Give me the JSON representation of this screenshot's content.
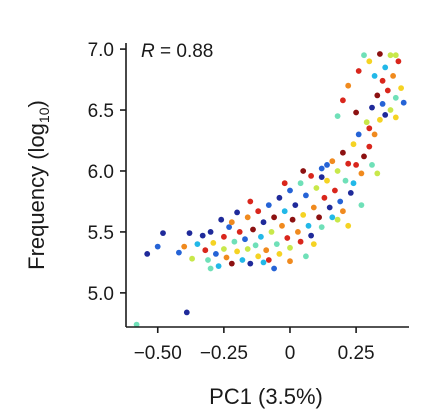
{
  "chart_data": {
    "type": "scatter",
    "title": "",
    "xlabel": "PC1 (3.5%)",
    "ylabel_main": "Frequency (log",
    "ylabel_sub": "10",
    "ylabel_end": ")",
    "annotation_symbol": "R",
    "annotation_value": " = 0.88",
    "annotation_position": "top-left",
    "xlim": [
      -0.62,
      0.45
    ],
    "ylim": [
      4.72,
      7.05
    ],
    "grid": false,
    "x_ticks": [
      {
        "value": -0.5,
        "label": "−0.50"
      },
      {
        "value": -0.25,
        "label": "−0.25"
      },
      {
        "value": 0,
        "label": "0"
      },
      {
        "value": 0.25,
        "label": "0.25"
      }
    ],
    "y_ticks": [
      {
        "value": 5.0,
        "label": "5.0"
      },
      {
        "value": 5.5,
        "label": "5.5"
      },
      {
        "value": 6.0,
        "label": "6.0"
      },
      {
        "value": 6.5,
        "label": "6.5"
      },
      {
        "value": 7.0,
        "label": "7.0"
      }
    ],
    "point_colormap": [
      "#1f2a9a",
      "#2563d6",
      "#22b8e8",
      "#6fe0b8",
      "#c8e84a",
      "#f5d323",
      "#f08a1e",
      "#d9261c",
      "#8c1111"
    ],
    "points": [
      [
        -0.58,
        4.74,
        3
      ],
      [
        -0.39,
        4.84,
        0
      ],
      [
        -0.54,
        5.32,
        0
      ],
      [
        -0.5,
        5.38,
        1
      ],
      [
        -0.48,
        5.49,
        0
      ],
      [
        -0.42,
        5.33,
        1
      ],
      [
        -0.4,
        5.38,
        6
      ],
      [
        -0.38,
        5.49,
        0
      ],
      [
        -0.37,
        5.28,
        4
      ],
      [
        -0.35,
        5.4,
        2
      ],
      [
        -0.33,
        5.47,
        0
      ],
      [
        -0.32,
        5.35,
        7
      ],
      [
        -0.31,
        5.27,
        3
      ],
      [
        -0.3,
        5.5,
        0
      ],
      [
        -0.29,
        5.41,
        5
      ],
      [
        -0.28,
        5.32,
        1
      ],
      [
        -0.27,
        5.22,
        2
      ],
      [
        -0.26,
        5.6,
        0
      ],
      [
        -0.25,
        5.46,
        7
      ],
      [
        -0.25,
        5.36,
        4
      ],
      [
        -0.24,
        5.29,
        6
      ],
      [
        -0.23,
        5.54,
        1
      ],
      [
        -0.22,
        5.24,
        8
      ],
      [
        -0.21,
        5.42,
        3
      ],
      [
        -0.2,
        5.66,
        0
      ],
      [
        -0.2,
        5.34,
        5
      ],
      [
        -0.19,
        5.5,
        7
      ],
      [
        -0.18,
        5.27,
        2
      ],
      [
        -0.17,
        5.44,
        1
      ],
      [
        -0.16,
        5.62,
        6
      ],
      [
        -0.16,
        5.36,
        4
      ],
      [
        -0.15,
        5.24,
        0
      ],
      [
        -0.14,
        5.52,
        8
      ],
      [
        -0.13,
        5.39,
        3
      ],
      [
        -0.12,
        5.67,
        7
      ],
      [
        -0.12,
        5.3,
        5
      ],
      [
        -0.11,
        5.46,
        2
      ],
      [
        -0.1,
        5.58,
        0
      ],
      [
        -0.09,
        5.35,
        6
      ],
      [
        -0.08,
        5.72,
        1
      ],
      [
        -0.08,
        5.27,
        7
      ],
      [
        -0.07,
        5.5,
        4
      ],
      [
        -0.06,
        5.62,
        8
      ],
      [
        -0.05,
        5.4,
        3
      ],
      [
        -0.04,
        5.78,
        0
      ],
      [
        -0.04,
        5.32,
        5
      ],
      [
        -0.03,
        5.55,
        6
      ],
      [
        -0.02,
        5.67,
        2
      ],
      [
        -0.01,
        5.45,
        7
      ],
      [
        0.0,
        5.84,
        1
      ],
      [
        0.0,
        5.37,
        4
      ],
      [
        0.01,
        5.6,
        8
      ],
      [
        0.02,
        5.72,
        0
      ],
      [
        0.03,
        5.5,
        6
      ],
      [
        0.04,
        5.9,
        3
      ],
      [
        0.04,
        5.42,
        7
      ],
      [
        0.05,
        5.64,
        5
      ],
      [
        0.06,
        5.8,
        1
      ],
      [
        0.07,
        5.55,
        2
      ],
      [
        0.08,
        5.96,
        7
      ],
      [
        0.08,
        5.47,
        0
      ],
      [
        0.09,
        5.7,
        6
      ],
      [
        0.1,
        5.86,
        4
      ],
      [
        0.11,
        5.62,
        8
      ],
      [
        0.12,
        6.02,
        1
      ],
      [
        0.12,
        5.54,
        3
      ],
      [
        0.13,
        5.78,
        7
      ],
      [
        0.14,
        5.92,
        5
      ],
      [
        0.15,
        5.7,
        0
      ],
      [
        0.16,
        6.08,
        6
      ],
      [
        0.16,
        5.62,
        2
      ],
      [
        0.17,
        5.84,
        7
      ],
      [
        0.18,
        6.0,
        4
      ],
      [
        0.19,
        5.75,
        1
      ],
      [
        0.2,
        6.15,
        8
      ],
      [
        0.2,
        5.67,
        6
      ],
      [
        0.21,
        5.92,
        3
      ],
      [
        0.22,
        6.06,
        7
      ],
      [
        0.23,
        5.82,
        0
      ],
      [
        0.24,
        6.22,
        5
      ],
      [
        0.24,
        5.9,
        2
      ],
      [
        0.25,
        6.05,
        7
      ],
      [
        0.26,
        6.3,
        1
      ],
      [
        0.27,
        5.98,
        6
      ],
      [
        0.28,
        6.12,
        8
      ],
      [
        0.29,
        6.4,
        4
      ],
      [
        0.3,
        6.2,
        7
      ],
      [
        0.31,
        6.52,
        0
      ],
      [
        0.31,
        6.05,
        3
      ],
      [
        0.32,
        6.3,
        6
      ],
      [
        0.33,
        6.62,
        8
      ],
      [
        0.34,
        6.42,
        5
      ],
      [
        0.35,
        6.74,
        7
      ],
      [
        0.35,
        6.55,
        1
      ],
      [
        0.36,
        6.85,
        2
      ],
      [
        0.37,
        6.66,
        7
      ],
      [
        0.38,
        6.95,
        4
      ],
      [
        0.39,
        6.78,
        6
      ],
      [
        0.4,
        6.6,
        3
      ],
      [
        0.41,
        6.9,
        7
      ],
      [
        0.42,
        6.68,
        5
      ],
      [
        0.43,
        6.56,
        1
      ],
      [
        0.34,
        6.96,
        8
      ],
      [
        0.3,
        6.9,
        5
      ],
      [
        0.28,
        6.95,
        3
      ],
      [
        0.26,
        6.82,
        7
      ],
      [
        0.22,
        6.7,
        6
      ],
      [
        0.38,
        6.5,
        4
      ],
      [
        0.36,
        6.46,
        0
      ],
      [
        0.4,
        6.44,
        5
      ],
      [
        0.2,
        6.58,
        7
      ],
      [
        0.18,
        6.45,
        3
      ],
      [
        -0.3,
        5.2,
        3
      ],
      [
        -0.22,
        5.58,
        6
      ],
      [
        -0.1,
        5.25,
        2
      ],
      [
        0.06,
        5.3,
        3
      ],
      [
        0.12,
        5.95,
        0
      ],
      [
        0.05,
        6.0,
        8
      ],
      [
        -0.02,
        5.9,
        7
      ],
      [
        0.18,
        5.6,
        4
      ],
      [
        0.22,
        5.55,
        5
      ],
      [
        0.33,
        5.98,
        4
      ],
      [
        0.27,
        5.72,
        3
      ],
      [
        -0.15,
        5.75,
        7
      ],
      [
        -0.06,
        5.2,
        1
      ],
      [
        0.0,
        5.26,
        6
      ],
      [
        0.14,
        6.05,
        1
      ],
      [
        0.09,
        5.4,
        5
      ],
      [
        0.3,
        6.35,
        7
      ],
      [
        0.25,
        6.48,
        8
      ],
      [
        0.4,
        6.95,
        4
      ],
      [
        0.32,
        6.78,
        2
      ]
    ]
  }
}
